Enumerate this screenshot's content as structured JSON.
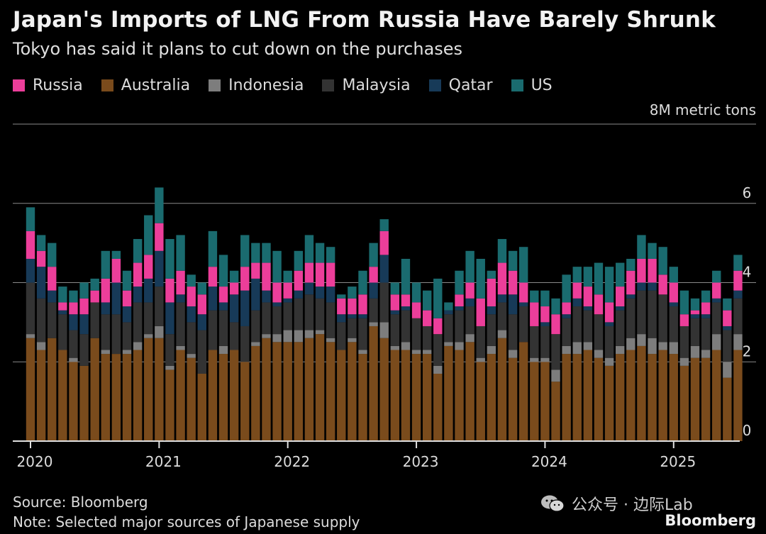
{
  "title": "Japan's Imports of LNG From Russia Have Barely Shrunk",
  "subtitle": "Tokyo has said it plans to cut down on the purchases",
  "unit_label": "8M metric tons",
  "source": "Source: Bloomberg",
  "note": "Note: Selected major sources of Japanese supply",
  "watermark": "公众号 · 边际Lab",
  "brand": "Bloomberg",
  "chart_data": {
    "type": "bar",
    "stacked": true,
    "x_tick_labels": [
      "2020",
      "2021",
      "2022",
      "2023",
      "2024",
      "2025"
    ],
    "y_ticks": [
      0,
      2,
      4,
      6
    ],
    "ylim": [
      0,
      8
    ],
    "legend_position": "top-left",
    "series": [
      {
        "name": "Australia",
        "color": "#7a4b1c",
        "values": [
          2.6,
          2.3,
          2.6,
          2.3,
          2.0,
          1.9,
          2.6,
          2.2,
          2.2,
          2.2,
          2.3,
          2.6,
          2.6,
          1.8,
          2.3,
          2.1,
          1.7,
          2.3,
          2.2,
          2.3,
          2.0,
          2.4,
          2.6,
          2.5,
          2.5,
          2.5,
          2.6,
          2.7,
          2.5,
          2.3,
          2.5,
          2.2,
          2.9,
          2.6,
          2.3,
          2.3,
          2.2,
          2.2,
          1.7,
          2.4,
          2.3,
          2.5,
          2.0,
          2.2,
          2.6,
          2.1,
          2.5,
          2.0,
          2.0,
          1.5,
          2.2,
          2.2,
          2.3,
          2.1,
          1.9,
          2.2,
          2.3,
          2.4,
          2.2,
          2.3,
          2.2,
          1.9,
          2.1,
          2.1,
          2.3,
          1.6,
          2.3
        ]
      },
      {
        "name": "Indonesia",
        "color": "#7d7d7d",
        "values": [
          0.1,
          0.2,
          0.0,
          0.0,
          0.1,
          0.0,
          0.0,
          0.1,
          0.0,
          0.1,
          0.2,
          0.1,
          0.3,
          0.1,
          0.1,
          0.1,
          0.0,
          0.0,
          0.2,
          0.0,
          0.0,
          0.1,
          0.1,
          0.2,
          0.3,
          0.3,
          0.2,
          0.1,
          0.1,
          0.0,
          0.1,
          0.1,
          0.1,
          0.4,
          0.1,
          0.2,
          0.1,
          0.1,
          0.2,
          0.1,
          0.2,
          0.2,
          0.1,
          0.2,
          0.2,
          0.2,
          0.0,
          0.1,
          0.1,
          0.3,
          0.2,
          0.3,
          0.2,
          0.2,
          0.2,
          0.2,
          0.3,
          0.3,
          0.4,
          0.2,
          0.3,
          0.2,
          0.3,
          0.2,
          0.4,
          0.4,
          0.4
        ]
      },
      {
        "name": "Malaysia",
        "color": "#333333",
        "values": [
          1.3,
          1.1,
          0.9,
          0.9,
          0.7,
          0.8,
          0.9,
          0.9,
          1.0,
          0.7,
          1.0,
          0.8,
          1.0,
          0.8,
          1.1,
          0.8,
          1.1,
          1.0,
          0.9,
          0.7,
          0.9,
          0.8,
          0.8,
          0.7,
          0.7,
          0.8,
          0.9,
          0.8,
          0.9,
          0.7,
          0.5,
          0.8,
          0.6,
          1.0,
          0.8,
          0.8,
          0.8,
          0.6,
          0.8,
          0.7,
          0.8,
          0.7,
          0.8,
          0.8,
          0.7,
          0.9,
          0.9,
          0.8,
          0.8,
          0.9,
          0.7,
          0.9,
          0.8,
          0.9,
          0.8,
          0.9,
          1.0,
          1.1,
          1.2,
          1.2,
          0.9,
          0.8,
          0.7,
          0.8,
          0.8,
          0.8,
          0.9
        ]
      },
      {
        "name": "Qatar",
        "color": "#173a58",
        "values": [
          0.6,
          0.8,
          0.3,
          0.1,
          0.4,
          0.5,
          0.0,
          0.3,
          0.8,
          0.4,
          0.4,
          0.6,
          0.9,
          0.8,
          0.2,
          0.4,
          0.4,
          0.6,
          0.2,
          0.7,
          0.9,
          0.8,
          0.3,
          0.1,
          0.1,
          0.2,
          0.3,
          0.3,
          0.4,
          0.2,
          0.1,
          0.1,
          0.4,
          0.7,
          0.1,
          0.1,
          0.0,
          0.0,
          0.0,
          0.1,
          0.1,
          0.2,
          0.0,
          0.2,
          0.2,
          0.5,
          0.1,
          0.0,
          0.1,
          0.0,
          0.1,
          0.2,
          0.1,
          0.0,
          0.1,
          0.1,
          0.1,
          0.2,
          0.2,
          0.0,
          0.1,
          0.0,
          0.1,
          0.1,
          0.1,
          0.1,
          0.2
        ]
      },
      {
        "name": "Russia",
        "color": "#ec3e9a",
        "values": [
          0.7,
          0.4,
          0.6,
          0.2,
          0.3,
          0.4,
          0.3,
          0.6,
          0.6,
          0.4,
          0.6,
          0.6,
          0.7,
          0.6,
          0.6,
          0.5,
          0.5,
          0.5,
          0.4,
          0.3,
          0.6,
          0.4,
          0.7,
          0.5,
          0.4,
          0.5,
          0.5,
          0.6,
          0.6,
          0.4,
          0.4,
          0.5,
          0.4,
          0.6,
          0.4,
          0.3,
          0.4,
          0.4,
          0.4,
          0.0,
          0.3,
          0.4,
          0.7,
          0.7,
          0.8,
          0.6,
          0.5,
          0.6,
          0.4,
          0.5,
          0.3,
          0.4,
          0.5,
          0.5,
          0.5,
          0.5,
          0.6,
          0.6,
          0.6,
          0.5,
          0.5,
          0.3,
          0.1,
          0.3,
          0.4,
          0.4,
          0.5
        ]
      },
      {
        "name": "US",
        "color": "#1a6b6f",
        "values": [
          0.6,
          0.4,
          0.6,
          0.4,
          0.3,
          0.4,
          0.3,
          0.7,
          0.2,
          0.5,
          0.6,
          1.0,
          0.9,
          1.0,
          0.9,
          0.3,
          0.3,
          0.9,
          0.8,
          0.3,
          0.8,
          0.5,
          0.5,
          0.8,
          0.3,
          0.5,
          0.7,
          0.5,
          0.4,
          0.1,
          0.3,
          0.6,
          0.6,
          0.3,
          0.3,
          0.9,
          0.5,
          0.5,
          1.0,
          0.2,
          0.6,
          0.8,
          1.0,
          0.2,
          0.6,
          0.5,
          0.9,
          0.3,
          0.4,
          0.4,
          0.7,
          0.4,
          0.5,
          0.8,
          0.9,
          0.6,
          0.3,
          0.6,
          0.4,
          0.7,
          0.4,
          0.6,
          0.3,
          0.3,
          0.3,
          0.3,
          0.4
        ]
      }
    ]
  }
}
